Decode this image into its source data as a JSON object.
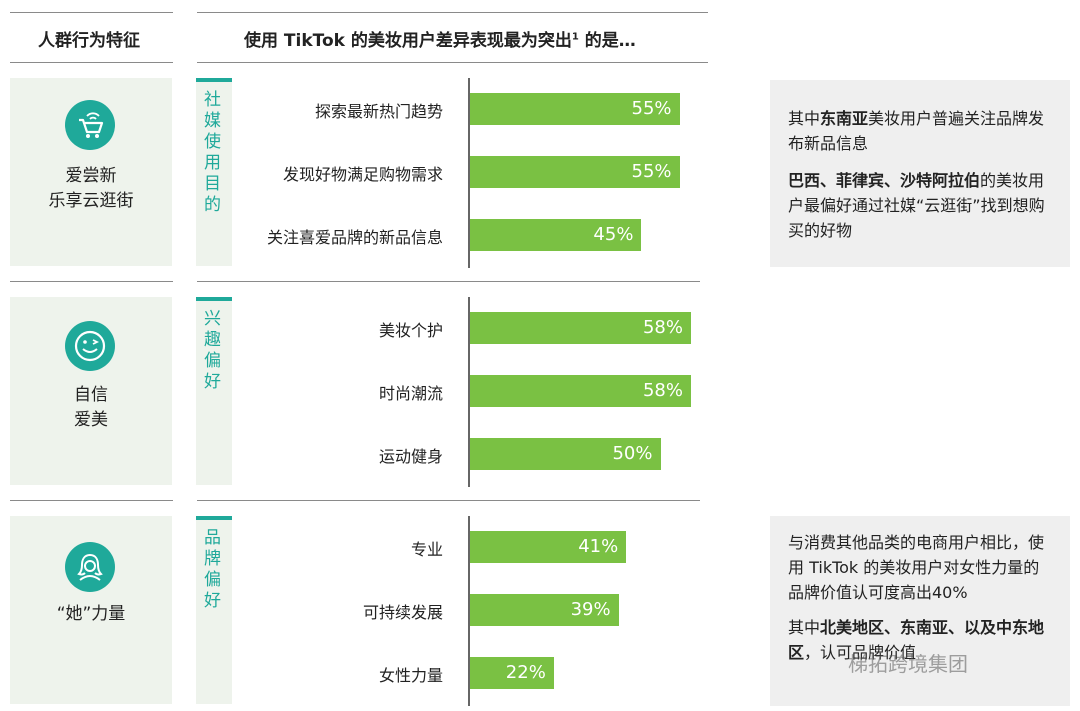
{
  "header": {
    "left": "人群行为特征",
    "right": "使用 TikTok 的美妆用户差异表现最为突出",
    "right_sup": "1",
    "right_suffix": " 的是…"
  },
  "personas": [
    {
      "label": "爱尝新\n乐享云逛街",
      "icon": "shopping-cart-wifi-icon"
    },
    {
      "label": "自信\n爱美",
      "icon": "wink-face-icon"
    },
    {
      "label": "“她”力量",
      "icon": "woman-icon"
    }
  ],
  "colors": {
    "teal": "#1fa99a",
    "bar": "#7ac143",
    "panel": "#eef3ec",
    "note": "#efefef"
  },
  "chart_data": {
    "type": "bar",
    "orientation": "horizontal",
    "xlim": [
      0,
      100
    ],
    "groups": [
      {
        "name": "社媒使用目的",
        "categories": [
          "探索最新热门趋势",
          "发现好物满足购物需求",
          "关注喜爱品牌的新品信息"
        ],
        "values": [
          55,
          55,
          45
        ],
        "labels": [
          "55%",
          "55%",
          "45%"
        ]
      },
      {
        "name": "兴趣偏好",
        "categories": [
          "美妆个护",
          "时尚潮流",
          "运动健身"
        ],
        "values": [
          58,
          58,
          50
        ],
        "labels": [
          "58%",
          "58%",
          "50%"
        ]
      },
      {
        "name": "品牌偏好",
        "categories": [
          "专业",
          "可持续发展",
          "女性力量"
        ],
        "values": [
          41,
          39,
          22
        ],
        "labels": [
          "41%",
          "39%",
          "22%"
        ]
      }
    ]
  },
  "notes": {
    "top": {
      "p1_pre": "其中",
      "p1_bold": "东南亚",
      "p1_post": "美妆用户普遍关注品牌发布新品信息",
      "p2_bold": "巴西、菲律宾、沙特阿拉伯",
      "p2_post": "的美妆用户最偏好通过社媒“云逛街”找到想购买的好物"
    },
    "bottom": {
      "p1": "与消费其他品类的电商用户相比，使用 TikTok 的美妆用户对女性力量的品牌价值认可度高出40%",
      "p2_pre": "其中",
      "p2_bold": "北美地区、东南亚、以及中东地区",
      "p2_post": "，认可品牌价值"
    }
  },
  "watermark": "梯拓跨境集团"
}
